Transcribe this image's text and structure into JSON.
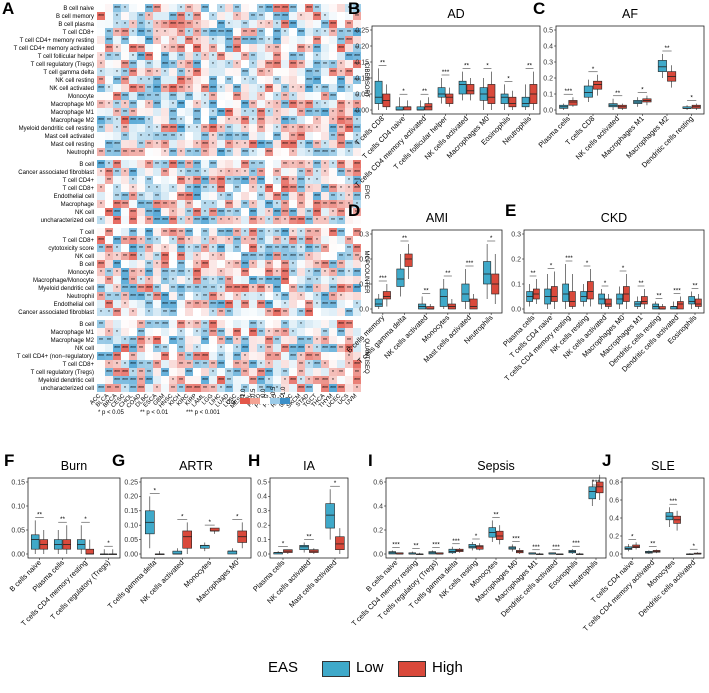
{
  "legend": {
    "title": "EAS",
    "low_label": "Low",
    "high_label": "High",
    "low_color": "#3fa9c9",
    "high_color": "#d9493b"
  },
  "colors": {
    "low": "#3fa9c9",
    "high": "#d9493b",
    "heat_pos": "#e8685a",
    "heat_neg": "#5aa8d6"
  },
  "chart_data": [
    {
      "panel": "A",
      "type": "heatmap",
      "title": "",
      "rows": [
        "B cell naive",
        "B cell memory",
        "B cell plasma",
        "T cell CD8+",
        "T cell CD4+ memory resting",
        "T cell CD4+ memory activated",
        "T cell follicular helper",
        "T cell regulatory (Tregs)",
        "T cell gamma delta",
        "NK cell resting",
        "NK cell activated",
        "Monocyte",
        "Macrophage M0",
        "Macrophage M1",
        "Macrophage M2",
        "Myeloid dendritic cell resting",
        "Mast cell activated",
        "Mast cell resting",
        "Neutrophil",
        "B cell",
        "Cancer associated fibroblast",
        "T cell CD4+",
        "T cell CD8+",
        "Endothelial cell",
        "Macrophage",
        "NK cell",
        "uncharacterized cell",
        "T cell",
        "T cell CD8+",
        "cytotoxicity score",
        "NK cell",
        "B cell",
        "Monocyte",
        "Macrophage/Monocyte",
        "Myeloid dendritic cell",
        "Neutrophil",
        "Endothelial cell",
        "Cancer associated fibroblast",
        "B cell",
        "Macrophage M1",
        "Macrophage M2",
        "NK cell",
        "T cell CD4+ (non−regulatory)",
        "T cell CD8+",
        "T cell regulatory (Tregs)",
        "Myeloid dendritic cell",
        "uncharacterized cell"
      ],
      "groups": [
        {
          "name": "CIBERSORT",
          "rows": 19
        },
        {
          "name": "EPIC",
          "rows": 8
        },
        {
          "name": "MCPCOUNTER",
          "rows": 11
        },
        {
          "name": "QUANTISEQ",
          "rows": 9
        }
      ],
      "columns": [
        "ACC",
        "BLCA",
        "BRCA",
        "CESC",
        "CHOL",
        "COAD",
        "DLBC",
        "ESCA",
        "GBM",
        "HNSC",
        "KICH",
        "KIRC",
        "KIRP",
        "LAML",
        "LGG",
        "LIHC",
        "LUAD",
        "LUSC",
        "MESO",
        "OV",
        "PAAD",
        "PCPG",
        "PRAD",
        "READ",
        "SARC",
        "SKCM",
        "STAD",
        "TGCT",
        "THCA",
        "THYM",
        "UCEC",
        "UCS",
        "UVM"
      ],
      "colorbar": {
        "label": "Cor",
        "ticks": [
          "1.0",
          "0.5",
          "0.0",
          "-0.5",
          "-1.0"
        ]
      },
      "significance": [
        "* p < 0.05",
        "** p < 0.01",
        "*** p < 0.001"
      ]
    },
    {
      "panel": "B",
      "type": "box",
      "title": "AD",
      "ylim": [
        0,
        0.25
      ],
      "yticks": [
        "0.00",
        "0.05",
        "0.10",
        "0.15",
        "0.20",
        "0.25"
      ],
      "categories": [
        "T cells CD8",
        "T cells CD4 naive",
        "T cells CD4 memory activated",
        "T cells follicular helper",
        "NK cells activated",
        "Macrophages M0",
        "Eosinophils",
        "Neutrophils"
      ],
      "sig": [
        "**",
        "*",
        "**",
        "***",
        "**",
        "*",
        "*",
        "**"
      ],
      "low": [
        [
          0.0,
          0.02,
          0.04,
          0.09,
          0.13
        ],
        [
          0.0,
          0.0,
          0.0,
          0.01,
          0.04
        ],
        [
          0.0,
          0.0,
          0.0,
          0.01,
          0.03
        ],
        [
          0.02,
          0.04,
          0.05,
          0.07,
          0.1
        ],
        [
          0.03,
          0.05,
          0.08,
          0.09,
          0.12
        ],
        [
          0.0,
          0.03,
          0.05,
          0.07,
          0.1
        ],
        [
          0.0,
          0.02,
          0.04,
          0.05,
          0.08
        ],
        [
          0.0,
          0.01,
          0.02,
          0.04,
          0.08
        ]
      ],
      "high": [
        [
          0.0,
          0.01,
          0.03,
          0.05,
          0.08
        ],
        [
          0.0,
          0.0,
          0.01,
          0.01,
          0.03
        ],
        [
          0.0,
          0.0,
          0.01,
          0.02,
          0.04
        ],
        [
          0.01,
          0.02,
          0.04,
          0.05,
          0.07
        ],
        [
          0.03,
          0.05,
          0.06,
          0.08,
          0.1
        ],
        [
          0.0,
          0.02,
          0.04,
          0.08,
          0.12
        ],
        [
          0.0,
          0.01,
          0.02,
          0.04,
          0.06
        ],
        [
          0.0,
          0.02,
          0.05,
          0.08,
          0.12
        ]
      ]
    },
    {
      "panel": "C",
      "type": "box",
      "title": "AF",
      "ylim": [
        0,
        0.5
      ],
      "yticks": [
        "0.0",
        "0.1",
        "0.2",
        "0.3",
        "0.4",
        "0.5"
      ],
      "categories": [
        "Plasma cells",
        "T cells CD8",
        "NK cells activated",
        "Macrophages M1",
        "Macrophages M2",
        "Dendritic cells resting"
      ],
      "sig": [
        "***",
        "*",
        "**",
        "*",
        "**",
        "*"
      ],
      "low": [
        [
          0.0,
          0.01,
          0.02,
          0.03,
          0.04
        ],
        [
          0.05,
          0.08,
          0.11,
          0.15,
          0.19
        ],
        [
          0.0,
          0.02,
          0.03,
          0.04,
          0.07
        ],
        [
          0.02,
          0.04,
          0.05,
          0.06,
          0.08
        ],
        [
          0.2,
          0.24,
          0.27,
          0.31,
          0.35
        ],
        [
          0.0,
          0.01,
          0.01,
          0.02,
          0.03
        ]
      ],
      "high": [
        [
          0.02,
          0.03,
          0.05,
          0.06,
          0.08
        ],
        [
          0.09,
          0.13,
          0.16,
          0.18,
          0.22
        ],
        [
          0.0,
          0.01,
          0.02,
          0.03,
          0.04
        ],
        [
          0.03,
          0.05,
          0.06,
          0.07,
          0.09
        ],
        [
          0.14,
          0.18,
          0.21,
          0.24,
          0.28
        ],
        [
          0.0,
          0.01,
          0.02,
          0.03,
          0.04
        ]
      ]
    },
    {
      "panel": "D",
      "type": "box",
      "title": "AMI",
      "ylim": [
        0,
        0.3
      ],
      "yticks": [
        "0.0",
        "0.1",
        "0.2",
        "0.3"
      ],
      "categories": [
        "B cells memory",
        "T cells gamma delta",
        "NK cells activated",
        "Monocytes",
        "Mast cells activated",
        "Neutrophils"
      ],
      "sig": [
        "***",
        "**",
        "**",
        "**",
        "***",
        "*"
      ],
      "low": [
        [
          0.0,
          0.01,
          0.02,
          0.04,
          0.06
        ],
        [
          0.05,
          0.09,
          0.12,
          0.16,
          0.22
        ],
        [
          0.0,
          0.0,
          0.01,
          0.02,
          0.05
        ],
        [
          0.0,
          0.01,
          0.05,
          0.08,
          0.12
        ],
        [
          0.0,
          0.03,
          0.06,
          0.1,
          0.16
        ],
        [
          0.04,
          0.1,
          0.14,
          0.19,
          0.26
        ]
      ],
      "high": [
        [
          0.01,
          0.04,
          0.05,
          0.07,
          0.1
        ],
        [
          0.12,
          0.17,
          0.2,
          0.22,
          0.26
        ],
        [
          0.0,
          0.0,
          0.0,
          0.01,
          0.02
        ],
        [
          0.0,
          0.0,
          0.01,
          0.02,
          0.04
        ],
        [
          0.0,
          0.0,
          0.01,
          0.04,
          0.06
        ],
        [
          0.02,
          0.06,
          0.1,
          0.14,
          0.22
        ]
      ]
    },
    {
      "panel": "E",
      "type": "box",
      "title": "CKD",
      "ylim": [
        0,
        0.3
      ],
      "yticks": [
        "0.0",
        "0.1",
        "0.2",
        "0.3"
      ],
      "categories": [
        "Plasma cells",
        "T cells CD4 naive",
        "T cells CD4 memory resting",
        "NK cells resting",
        "NK cells activated",
        "Macrophages M0",
        "Macrophages M1",
        "Dendritic cells resting",
        "Dendritic cells activated",
        "Eosinophils"
      ],
      "sig": [
        "**",
        "*",
        "***",
        "*",
        "*",
        "*",
        "**",
        "**",
        "***",
        "**"
      ],
      "low": [
        [
          0.01,
          0.03,
          0.05,
          0.07,
          0.1
        ],
        [
          0.0,
          0.02,
          0.05,
          0.08,
          0.14
        ],
        [
          0.0,
          0.03,
          0.06,
          0.1,
          0.18
        ],
        [
          0.01,
          0.03,
          0.05,
          0.07,
          0.1
        ],
        [
          0.0,
          0.02,
          0.04,
          0.06,
          0.08
        ],
        [
          0.0,
          0.02,
          0.04,
          0.06,
          0.09
        ],
        [
          0.0,
          0.01,
          0.02,
          0.03,
          0.05
        ],
        [
          0.0,
          0.0,
          0.01,
          0.02,
          0.03
        ],
        [
          0.0,
          0.0,
          0.01,
          0.01,
          0.03
        ],
        [
          0.0,
          0.02,
          0.03,
          0.05,
          0.07
        ]
      ],
      "high": [
        [
          0.02,
          0.04,
          0.06,
          0.08,
          0.12
        ],
        [
          0.0,
          0.03,
          0.05,
          0.09,
          0.15
        ],
        [
          0.0,
          0.01,
          0.03,
          0.07,
          0.14
        ],
        [
          0.01,
          0.04,
          0.07,
          0.11,
          0.16
        ],
        [
          0.0,
          0.01,
          0.02,
          0.04,
          0.06
        ],
        [
          0.0,
          0.03,
          0.06,
          0.09,
          0.14
        ],
        [
          0.0,
          0.02,
          0.03,
          0.05,
          0.08
        ],
        [
          0.0,
          0.0,
          0.0,
          0.01,
          0.02
        ],
        [
          0.0,
          0.0,
          0.02,
          0.03,
          0.05
        ],
        [
          0.0,
          0.01,
          0.02,
          0.04,
          0.06
        ]
      ]
    },
    {
      "panel": "F",
      "type": "box",
      "title": "Burn",
      "ylim": [
        0,
        0.15
      ],
      "yticks": [
        "0.00",
        "0.05",
        "0.10",
        "0.15"
      ],
      "categories": [
        "B cells naive",
        "Plasma cells",
        "T cells CD4 memory resting",
        "T cells regulatory (Tregs)"
      ],
      "sig": [
        "**",
        "**",
        "*",
        "*"
      ],
      "low": [
        [
          0.0,
          0.01,
          0.03,
          0.04,
          0.07
        ],
        [
          0.0,
          0.01,
          0.02,
          0.03,
          0.05
        ],
        [
          0.0,
          0.01,
          0.02,
          0.03,
          0.06
        ],
        [
          0.0,
          0.0,
          0.0,
          0.0,
          0.01
        ]
      ],
      "high": [
        [
          0.0,
          0.01,
          0.02,
          0.03,
          0.05
        ],
        [
          0.0,
          0.01,
          0.02,
          0.03,
          0.06
        ],
        [
          0.0,
          0.0,
          0.0,
          0.01,
          0.03
        ],
        [
          0.0,
          0.0,
          0.0,
          0.0,
          0.01
        ]
      ]
    },
    {
      "panel": "G",
      "type": "box",
      "title": "ARTR",
      "ylim": [
        0,
        0.25
      ],
      "yticks": [
        "0.00",
        "0.05",
        "0.10",
        "0.15",
        "0.20",
        "0.25"
      ],
      "categories": [
        "T cells gamma delta",
        "NK cells activated",
        "Monocytes",
        "Macrophages M0"
      ],
      "sig": [
        "*",
        "*",
        "*",
        "*"
      ],
      "low": [
        [
          0.02,
          0.07,
          0.11,
          0.15,
          0.2
        ],
        [
          0.0,
          0.0,
          0.0,
          0.01,
          0.02
        ],
        [
          0.01,
          0.02,
          0.03,
          0.03,
          0.04
        ],
        [
          0.0,
          0.0,
          0.01,
          0.01,
          0.02
        ]
      ],
      "high": [
        [
          0.0,
          0.0,
          0.0,
          0.0,
          0.01
        ],
        [
          0.0,
          0.02,
          0.06,
          0.08,
          0.11
        ],
        [
          0.07,
          0.08,
          0.08,
          0.09,
          0.09
        ],
        [
          0.02,
          0.04,
          0.06,
          0.08,
          0.11
        ]
      ]
    },
    {
      "panel": "H",
      "type": "box",
      "title": "IA",
      "ylim": [
        0,
        0.5
      ],
      "yticks": [
        "0.0",
        "0.1",
        "0.2",
        "0.3",
        "0.4",
        "0.5"
      ],
      "categories": [
        "Plasma cells",
        "NK cells activated",
        "Mast cells activated"
      ],
      "sig": [
        "*",
        "**",
        "*"
      ],
      "low": [
        [
          0.0,
          0.0,
          0.01,
          0.01,
          0.02
        ],
        [
          0.01,
          0.03,
          0.05,
          0.06,
          0.08
        ],
        [
          0.1,
          0.18,
          0.27,
          0.35,
          0.45
        ]
      ],
      "high": [
        [
          0.0,
          0.01,
          0.02,
          0.03,
          0.03
        ],
        [
          0.0,
          0.01,
          0.02,
          0.03,
          0.04
        ],
        [
          0.0,
          0.03,
          0.07,
          0.12,
          0.18
        ]
      ]
    },
    {
      "panel": "I",
      "type": "box",
      "title": "Sepsis",
      "ylim": [
        0,
        0.6
      ],
      "yticks": [
        "0.0",
        "0.2",
        "0.4",
        "0.6"
      ],
      "categories": [
        "B cells naive",
        "T cells CD4 memory resting",
        "T cells regulatory (Tregs)",
        "T cells gamma delta",
        "NK cells resting",
        "Monocytes",
        "Macrophages M0",
        "Macrophages M1",
        "Dendritic cells activated",
        "Eosinophils",
        "Neutrophils"
      ],
      "sig": [
        "***",
        "**",
        "***",
        "***",
        "*",
        "**",
        "***",
        "***",
        "***",
        "***",
        "***"
      ],
      "low": [
        [
          0.0,
          0.0,
          0.01,
          0.02,
          0.03
        ],
        [
          0.0,
          0.0,
          0.0,
          0.01,
          0.02
        ],
        [
          0.0,
          0.0,
          0.01,
          0.02,
          0.03
        ],
        [
          0.0,
          0.01,
          0.02,
          0.04,
          0.06
        ],
        [
          0.03,
          0.05,
          0.06,
          0.08,
          0.1
        ],
        [
          0.1,
          0.14,
          0.18,
          0.22,
          0.28
        ],
        [
          0.02,
          0.04,
          0.05,
          0.06,
          0.08
        ],
        [
          0.0,
          0.0,
          0.0,
          0.01,
          0.01
        ],
        [
          0.0,
          0.0,
          0.0,
          0.01,
          0.01
        ],
        [
          0.0,
          0.01,
          0.02,
          0.03,
          0.04
        ],
        [
          0.4,
          0.46,
          0.52,
          0.56,
          0.62
        ]
      ],
      "high": [
        [
          0.0,
          0.0,
          0.0,
          0.01,
          0.01
        ],
        [
          0.0,
          0.0,
          0.0,
          0.0,
          0.01
        ],
        [
          0.0,
          0.0,
          0.0,
          0.01,
          0.01
        ],
        [
          0.01,
          0.02,
          0.03,
          0.04,
          0.05
        ],
        [
          0.03,
          0.04,
          0.06,
          0.07,
          0.09
        ],
        [
          0.08,
          0.12,
          0.15,
          0.19,
          0.24
        ],
        [
          0.0,
          0.01,
          0.02,
          0.03,
          0.05
        ],
        [
          0.0,
          0.0,
          0.0,
          0.0,
          0.01
        ],
        [
          0.0,
          0.0,
          0.0,
          0.0,
          0.0
        ],
        [
          0.0,
          0.0,
          0.0,
          0.0,
          0.01
        ],
        [
          0.45,
          0.51,
          0.56,
          0.6,
          0.66
        ]
      ]
    },
    {
      "panel": "J",
      "type": "box",
      "title": "SLE",
      "ylim": [
        0,
        0.8
      ],
      "yticks": [
        "0.0",
        "0.2",
        "0.4",
        "0.6",
        "0.8"
      ],
      "categories": [
        "T cells CD4 naive",
        "T cells CD4 memory activated",
        "Monocytes",
        "Dendritic cells activated"
      ],
      "sig": [
        "*",
        "**",
        "***",
        "*"
      ],
      "low": [
        [
          0.03,
          0.05,
          0.06,
          0.08,
          0.11
        ],
        [
          0.0,
          0.01,
          0.02,
          0.03,
          0.04
        ],
        [
          0.3,
          0.38,
          0.42,
          0.46,
          0.52
        ],
        [
          0.0,
          0.0,
          0.0,
          0.0,
          0.01
        ]
      ],
      "high": [
        [
          0.05,
          0.07,
          0.08,
          0.1,
          0.13
        ],
        [
          0.01,
          0.02,
          0.03,
          0.04,
          0.05
        ],
        [
          0.26,
          0.34,
          0.38,
          0.42,
          0.48
        ],
        [
          0.0,
          0.0,
          0.0,
          0.01,
          0.02
        ]
      ]
    }
  ]
}
